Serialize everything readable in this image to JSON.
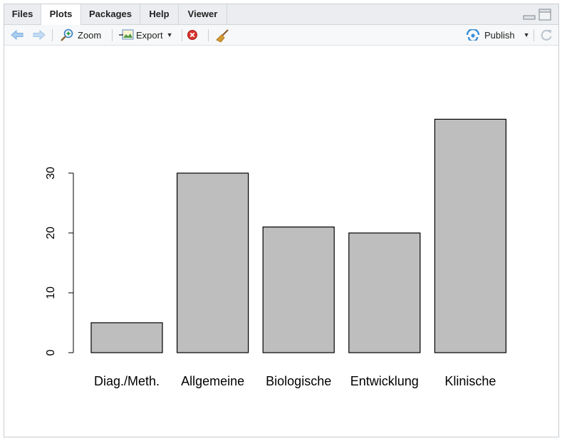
{
  "tabs": [
    {
      "label": "Files",
      "active": false
    },
    {
      "label": "Plots",
      "active": true
    },
    {
      "label": "Packages",
      "active": false
    },
    {
      "label": "Help",
      "active": false
    },
    {
      "label": "Viewer",
      "active": false
    }
  ],
  "toolbar": {
    "zoom_label": "Zoom",
    "export_label": "Export",
    "publish_label": "Publish"
  },
  "icons": [
    "back-arrow-icon",
    "forward-arrow-icon",
    "zoom-icon",
    "export-icon",
    "remove-plot-icon",
    "broom-icon",
    "publish-icon",
    "refresh-icon",
    "minimize-icon",
    "maximize-icon"
  ],
  "colors": {
    "bar_fill": "#bebebe",
    "bar_stroke": "#000000",
    "accent": "#3a8fd9",
    "remove": "#d9322e"
  },
  "chart_data": {
    "type": "bar",
    "categories": [
      "Diag./Meth.",
      "Allgemeine",
      "Biologische",
      "Entwicklung",
      "Klinische"
    ],
    "values": [
      5,
      30,
      21,
      20,
      39
    ],
    "yticks": [
      "0",
      "10",
      "20",
      "30"
    ],
    "ylim": [
      0,
      40
    ],
    "title": "",
    "xlabel": "",
    "ylabel": "",
    "grid": false
  }
}
